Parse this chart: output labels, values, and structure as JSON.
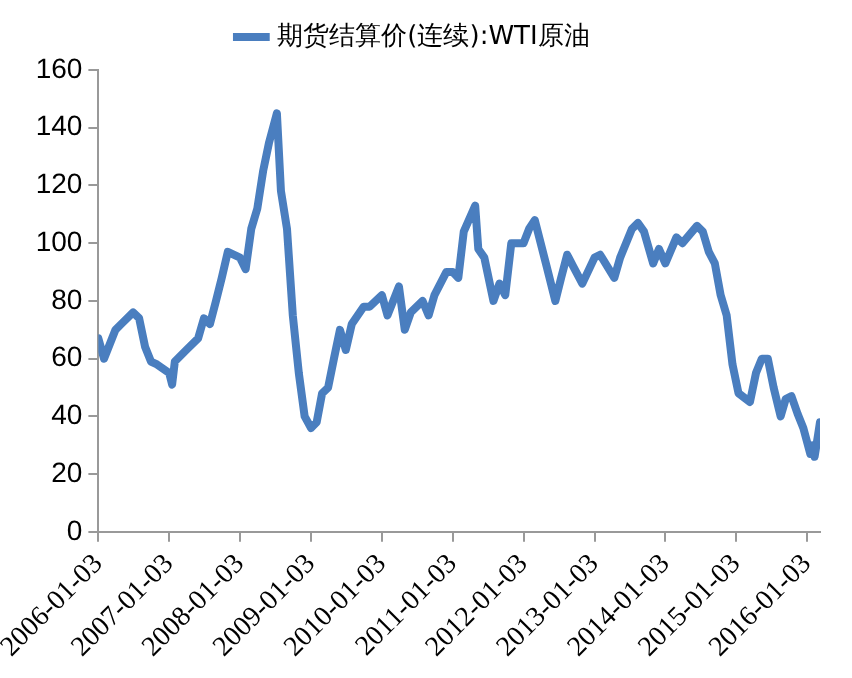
{
  "chart_data": {
    "type": "line",
    "legend": "top",
    "grid": false,
    "marker": "none",
    "line_style": "solid",
    "x": [
      "2006-01-03",
      "2006-02-01",
      "2006-04-01",
      "2006-05-01",
      "2006-07-01",
      "2006-08-01",
      "2006-09-01",
      "2006-10-01",
      "2006-11-01",
      "2007-01-03",
      "2007-01-18",
      "2007-02-01",
      "2007-04-01",
      "2007-06-01",
      "2007-07-01",
      "2007-08-01",
      "2007-09-01",
      "2007-10-01",
      "2007-11-01",
      "2008-01-03",
      "2008-02-01",
      "2008-03-01",
      "2008-04-01",
      "2008-05-01",
      "2008-06-01",
      "2008-07-11",
      "2008-08-01",
      "2008-09-01",
      "2008-10-01",
      "2008-11-01",
      "2008-12-01",
      "2009-01-03",
      "2009-02-01",
      "2009-03-01",
      "2009-04-01",
      "2009-05-01",
      "2009-06-01",
      "2009-07-01",
      "2009-08-01",
      "2009-10-01",
      "2009-11-01",
      "2010-01-03",
      "2010-02-01",
      "2010-04-01",
      "2010-05-01",
      "2010-06-01",
      "2010-08-01",
      "2010-09-01",
      "2010-10-01",
      "2010-12-01",
      "2011-01-03",
      "2011-02-01",
      "2011-03-01",
      "2011-04-29",
      "2011-05-15",
      "2011-06-15",
      "2011-08-01",
      "2011-09-01",
      "2011-10-01",
      "2011-11-01",
      "2012-01-03",
      "2012-02-01",
      "2012-03-01",
      "2012-05-01",
      "2012-06-15",
      "2012-07-15",
      "2012-08-15",
      "2012-09-15",
      "2012-11-01",
      "2013-01-03",
      "2013-02-01",
      "2013-04-15",
      "2013-05-15",
      "2013-07-15",
      "2013-08-15",
      "2013-09-15",
      "2013-11-01",
      "2013-12-01",
      "2014-01-03",
      "2014-03-01",
      "2014-04-01",
      "2014-06-15",
      "2014-07-15",
      "2014-08-15",
      "2014-09-15",
      "2014-10-15",
      "2014-11-15",
      "2014-12-15",
      "2015-01-15",
      "2015-03-15",
      "2015-04-15",
      "2015-05-15",
      "2015-06-15",
      "2015-07-15",
      "2015-08-20",
      "2015-09-15",
      "2015-10-15",
      "2015-11-15",
      "2015-12-15",
      "2016-01-20",
      "2016-02-01",
      "2016-02-11",
      "2016-03-01",
      "2016-03-10"
    ],
    "series": [
      {
        "name": "期货结算价(连续):WTI原油",
        "color": "#4a7ebf",
        "values": [
          67,
          60,
          70,
          72,
          76,
          74,
          64,
          59,
          58,
          55,
          51,
          59,
          63,
          67,
          74,
          72,
          80,
          88,
          97,
          95,
          91,
          105,
          112,
          125,
          135,
          145,
          118,
          105,
          75,
          55,
          40,
          36,
          38,
          48,
          50,
          60,
          70,
          63,
          72,
          78,
          78,
          82,
          75,
          85,
          70,
          76,
          80,
          75,
          82,
          90,
          90,
          88,
          104,
          113,
          98,
          95,
          80,
          86,
          82,
          100,
          100,
          105,
          108,
          92,
          80,
          88,
          96,
          92,
          86,
          95,
          96,
          88,
          95,
          105,
          107,
          104,
          93,
          98,
          93,
          102,
          100,
          106,
          104,
          97,
          93,
          82,
          75,
          58,
          48,
          45,
          55,
          60,
          60,
          50,
          40,
          46,
          47,
          41,
          36,
          27,
          30,
          26,
          34,
          38
        ]
      }
    ],
    "ylim": [
      0,
      160
    ],
    "yticks": [
      0,
      20,
      40,
      60,
      80,
      100,
      120,
      140,
      160
    ],
    "xlim": [
      "2006-01-03",
      "2016-03-10"
    ],
    "xticks": [
      "2006-01-03",
      "2007-01-03",
      "2008-01-03",
      "2009-01-03",
      "2010-01-03",
      "2011-01-03",
      "2012-01-03",
      "2013-01-03",
      "2014-01-03",
      "2015-01-03",
      "2016-01-03"
    ]
  }
}
